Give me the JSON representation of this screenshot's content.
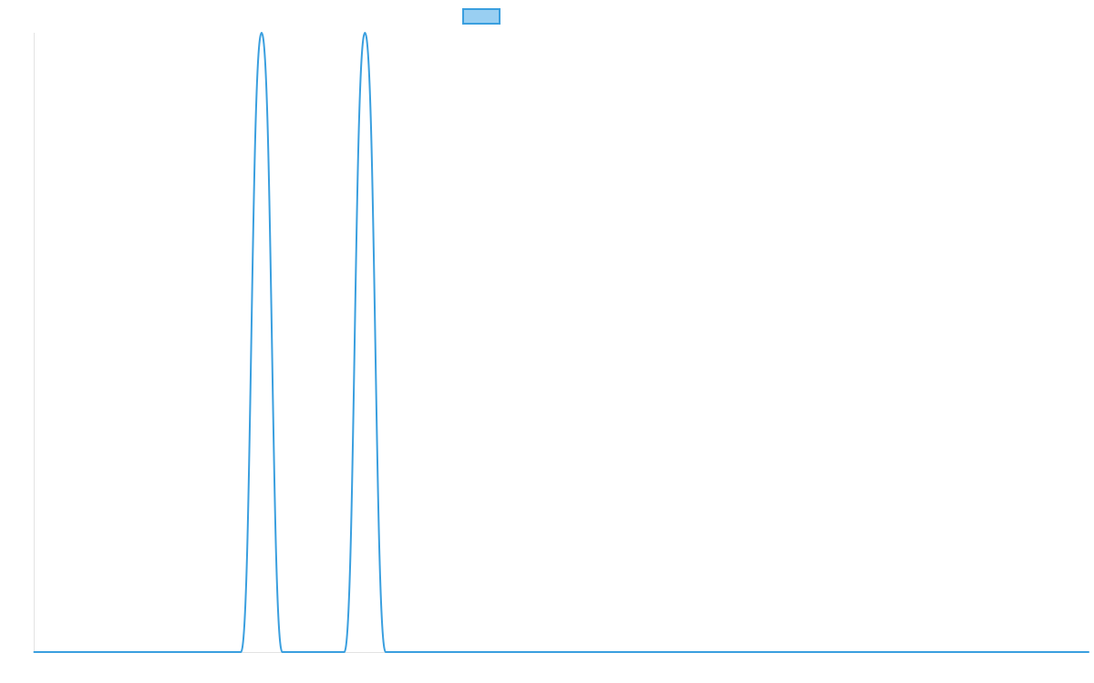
{
  "chart_data": {
    "type": "line",
    "title": "",
    "xlabel": "",
    "ylabel": "",
    "grid": false,
    "legend_placement": "top-center",
    "x": [
      0,
      1,
      2,
      3,
      4,
      5,
      6,
      7,
      8,
      9,
      10,
      11,
      12,
      13,
      14,
      15,
      16,
      17,
      18,
      19,
      20,
      21,
      22,
      23,
      24,
      25,
      26,
      27,
      28,
      29,
      30,
      31,
      32,
      33,
      34,
      35,
      36,
      37,
      38,
      39,
      40,
      41,
      42,
      43,
      44,
      45,
      46,
      47,
      48,
      49,
      50,
      51
    ],
    "xlim": [
      0,
      51
    ],
    "ylim": [
      0,
      1
    ],
    "series": [
      {
        "name": "",
        "color": "#3a9fdf",
        "fill": "#99cff2",
        "values": [
          0,
          0,
          0,
          0,
          0,
          0,
          0,
          0,
          0,
          0,
          0,
          1,
          0,
          0,
          0,
          0,
          1,
          0,
          0,
          0,
          0,
          0,
          0,
          0,
          0,
          0,
          0,
          0,
          0,
          0,
          0,
          0,
          0,
          0,
          0,
          0,
          0,
          0,
          0,
          0,
          0,
          0,
          0,
          0,
          0,
          0,
          0,
          0,
          0,
          0,
          0,
          0
        ]
      }
    ]
  }
}
